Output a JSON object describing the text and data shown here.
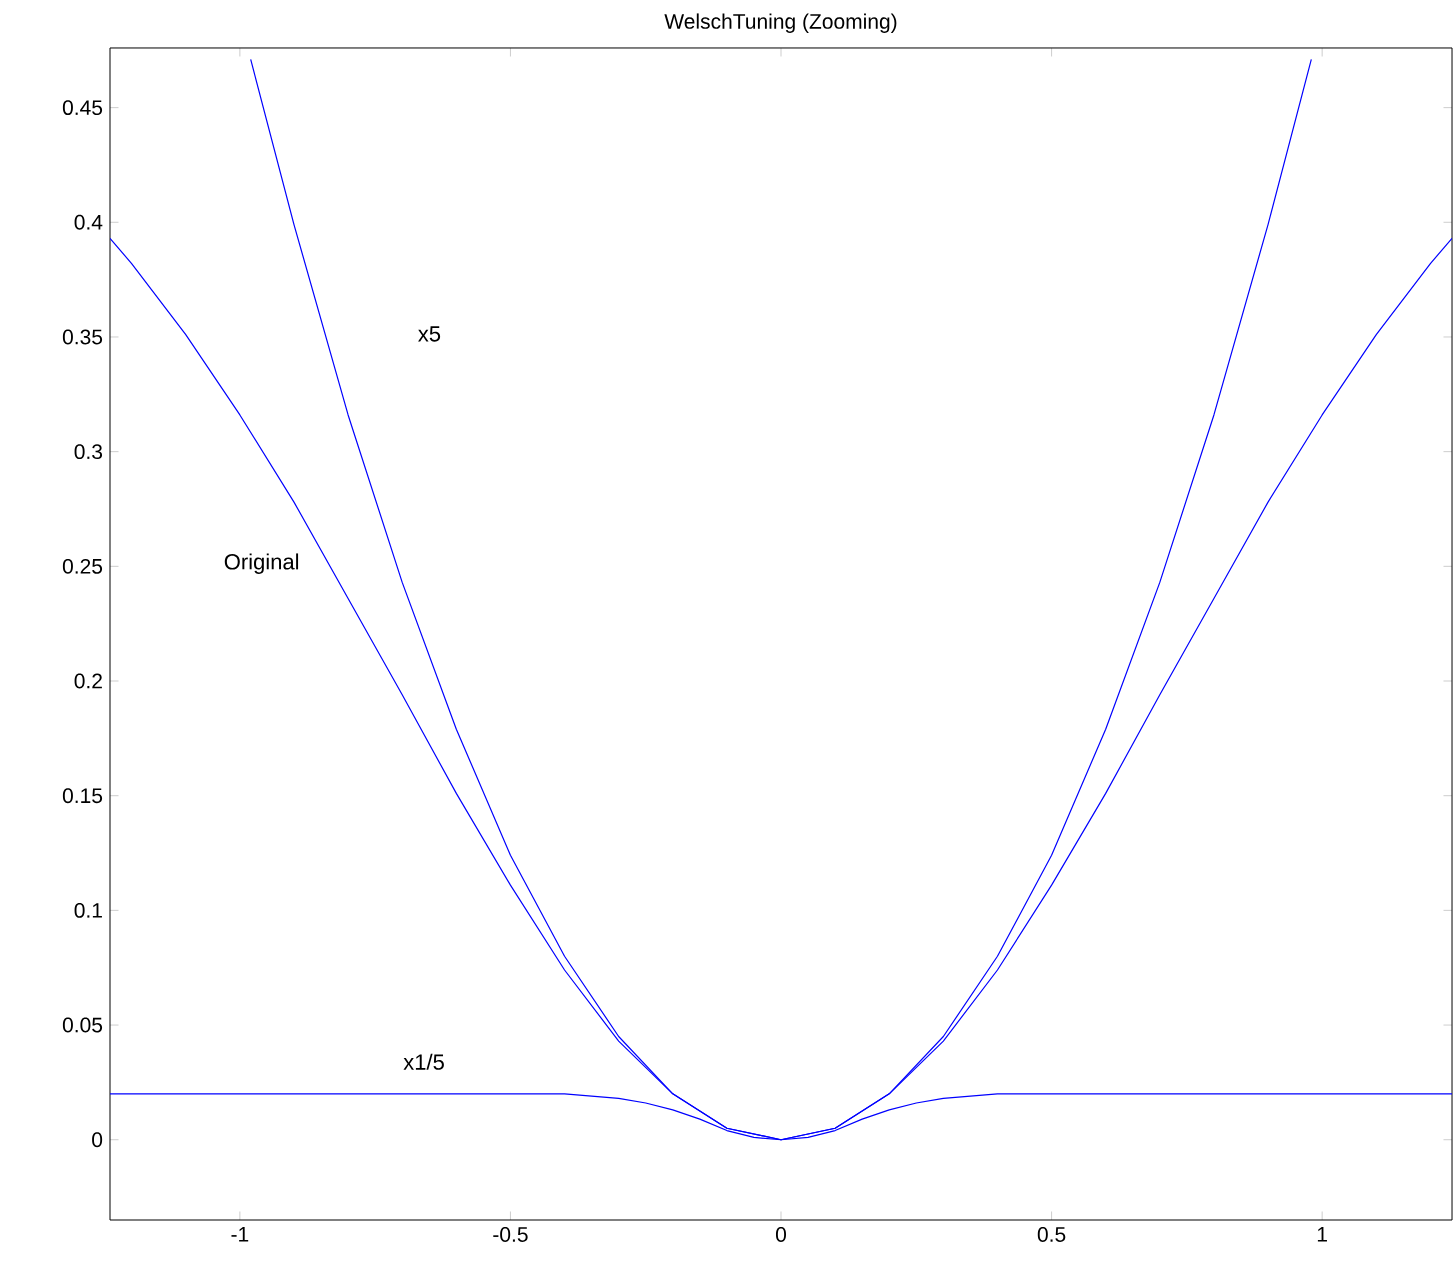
{
  "chart_data": {
    "type": "line",
    "title": "WelschTuning (Zooming)",
    "xlim": [
      -1.24,
      1.24
    ],
    "ylim": [
      -0.035,
      0.476
    ],
    "xticks": [
      -1,
      -0.5,
      0,
      0.5,
      1
    ],
    "yticks": [
      0,
      0.05,
      0.1,
      0.15,
      0.2,
      0.25,
      0.3,
      0.35,
      0.4,
      0.45
    ],
    "series": [
      {
        "color": "#0000ff",
        "x": [
          -1.24,
          -1.2,
          -1.1,
          -1.0,
          -0.9,
          -0.8,
          -0.7,
          -0.6,
          -0.5,
          -0.4,
          -0.3,
          -0.2,
          -0.1,
          0,
          0.1,
          0.2,
          0.3,
          0.4,
          0.5,
          0.6,
          0.7,
          0.8,
          0.9,
          1.0,
          1.1,
          1.2,
          1.24
        ],
        "values": [
          0.393,
          0.382,
          0.351,
          0.316,
          0.278,
          0.236,
          0.194,
          0.151,
          0.111,
          0.074,
          0.043,
          0.02,
          0.005,
          0,
          0.005,
          0.02,
          0.043,
          0.074,
          0.111,
          0.151,
          0.194,
          0.236,
          0.278,
          0.316,
          0.351,
          0.382,
          0.393
        ]
      },
      {
        "color": "#0000ff",
        "x": [
          -0.98,
          -0.9,
          -0.8,
          -0.7,
          -0.6,
          -0.5,
          -0.4,
          -0.3,
          -0.2,
          -0.1,
          0,
          0.1,
          0.2,
          0.3,
          0.4,
          0.5,
          0.6,
          0.7,
          0.8,
          0.9,
          0.98
        ],
        "values": [
          0.471,
          0.399,
          0.316,
          0.243,
          0.179,
          0.124,
          0.08,
          0.045,
          0.02,
          0.005,
          0,
          0.005,
          0.02,
          0.045,
          0.08,
          0.124,
          0.179,
          0.243,
          0.316,
          0.399,
          0.471
        ]
      },
      {
        "color": "#0000ff",
        "x": [
          -1.24,
          -1.0,
          -0.8,
          -0.6,
          -0.5,
          -0.4,
          -0.3,
          -0.25,
          -0.2,
          -0.15,
          -0.1,
          -0.05,
          0,
          0.05,
          0.1,
          0.15,
          0.2,
          0.25,
          0.3,
          0.4,
          0.5,
          0.6,
          0.8,
          1.0,
          1.24
        ],
        "values": [
          0.02,
          0.02,
          0.02,
          0.02,
          0.02,
          0.02,
          0.018,
          0.016,
          0.013,
          0.009,
          0.004,
          0.001,
          0,
          0.001,
          0.004,
          0.009,
          0.013,
          0.016,
          0.018,
          0.02,
          0.02,
          0.02,
          0.02,
          0.02,
          0.02
        ]
      }
    ],
    "annotations": [
      "x5",
      "Original",
      "x1/5"
    ]
  }
}
